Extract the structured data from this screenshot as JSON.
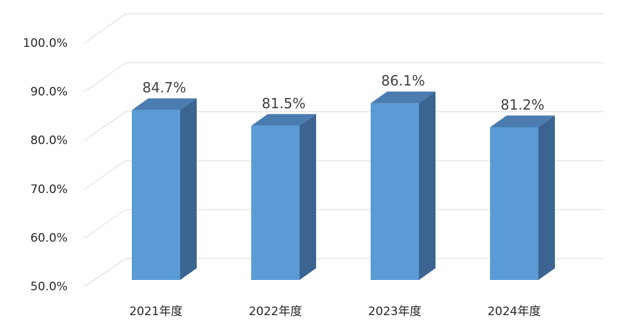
{
  "chart_data": {
    "type": "bar3d",
    "categories": [
      "2021年度",
      "2022年度",
      "2023年度",
      "2024年度"
    ],
    "values": [
      84.7,
      81.5,
      86.1,
      81.2
    ],
    "value_labels": [
      "84.7%",
      "81.5%",
      "86.1%",
      "81.2%"
    ],
    "color": "#5b9bd5",
    "ylim": [
      50,
      100
    ],
    "yticks": [
      {
        "value": 50,
        "label": "50.0%"
      },
      {
        "value": 60,
        "label": "60.0%"
      },
      {
        "value": 70,
        "label": "70.0%"
      },
      {
        "value": 80,
        "label": "80.0%"
      },
      {
        "value": 90,
        "label": "90.0%"
      },
      {
        "value": 100,
        "label": "100.0%"
      }
    ],
    "grid": true
  }
}
